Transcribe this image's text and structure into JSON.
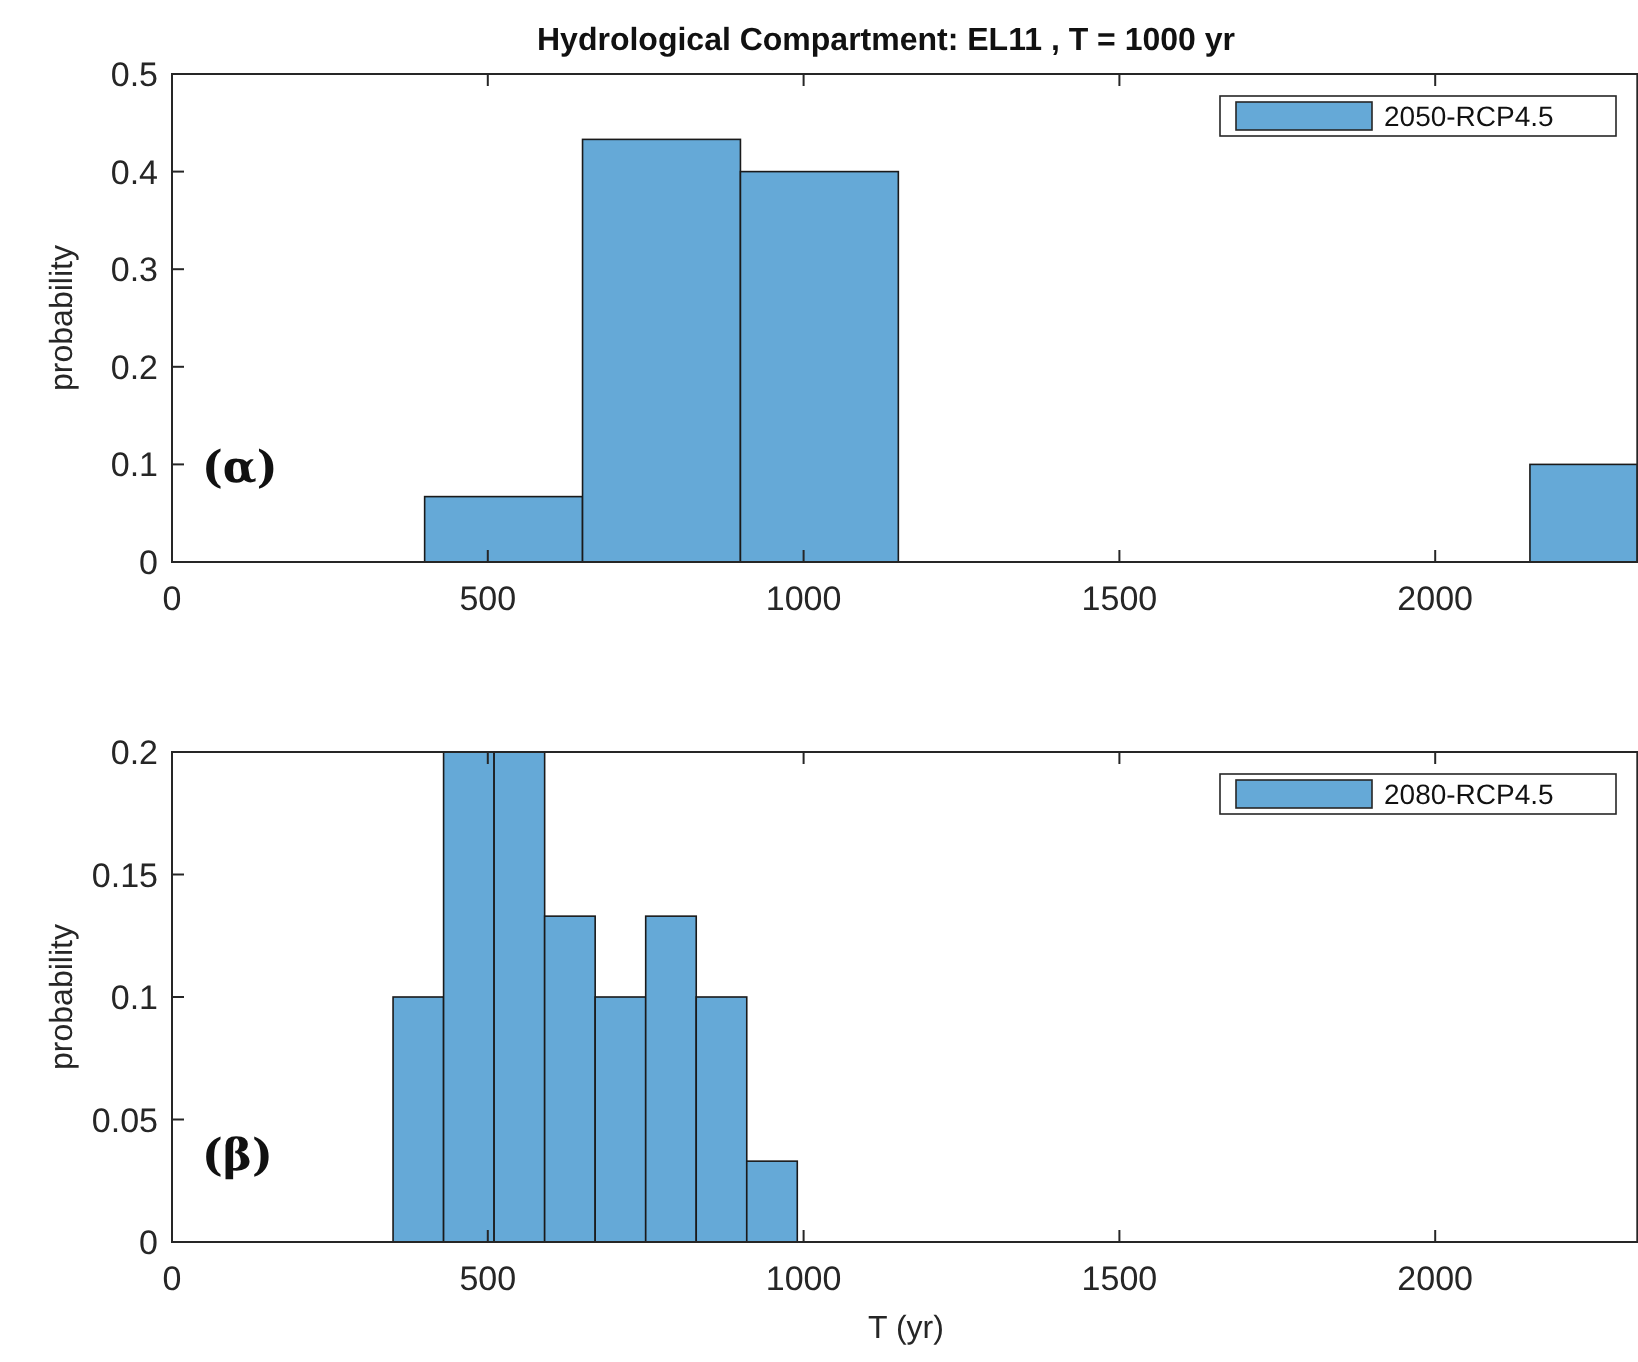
{
  "chart_data": [
    {
      "type": "histogram",
      "title": "Hydrological Compartment: EL11 ,  T = 1000 yr",
      "ylabel": "probability",
      "bins": [
        400,
        650,
        900,
        1150,
        2150,
        2320
      ],
      "series": [
        {
          "name": "2050-RCP4.5",
          "color": "#65a9d7",
          "values": [
            0.067,
            0.433,
            0.4,
            0,
            0.1
          ]
        }
      ],
      "xlim": [
        0,
        2320
      ],
      "xticks": [
        0,
        500,
        1000,
        1500,
        2000
      ],
      "ylim": [
        0,
        0.5
      ],
      "yticks": [
        0,
        0.1,
        0.2,
        0.3,
        0.4,
        0.5
      ],
      "legend": "top right",
      "grid": false,
      "annotations": [
        "(α)"
      ]
    },
    {
      "type": "histogram",
      "xlabel": "T (yr)",
      "ylabel": "probability",
      "bins": [
        350,
        430,
        510,
        590,
        670,
        750,
        830,
        910,
        990
      ],
      "series": [
        {
          "name": "2080-RCP4.5",
          "color": "#65a9d7",
          "values": [
            0.1,
            0.2,
            0.2,
            0.133,
            0.1,
            0.133,
            0.1,
            0.033
          ]
        }
      ],
      "xlim": [
        0,
        2320
      ],
      "xticks": [
        0,
        500,
        1000,
        1500,
        2000
      ],
      "ylim": [
        0,
        0.2
      ],
      "yticks": [
        0,
        0.05,
        0.1,
        0.15,
        0.2
      ],
      "legend": "top right",
      "grid": false,
      "annotations": [
        "(β)"
      ]
    }
  ]
}
